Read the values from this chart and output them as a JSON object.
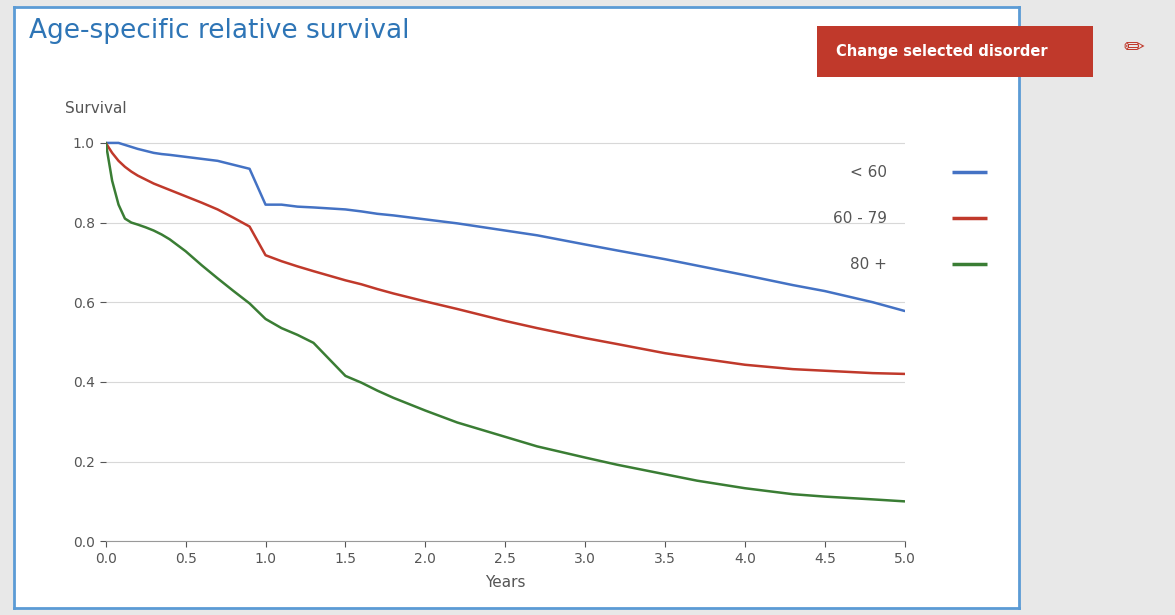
{
  "title": "Age-specific relative survival",
  "ylabel": "Survival",
  "xlabel": "Years",
  "bg_outer": "#e8e8e8",
  "panel_bg": "#ffffff",
  "border_color": "#5b9bd5",
  "title_color": "#2e75b6",
  "ylabel_color": "#555555",
  "xlabel_color": "#555555",
  "tick_color": "#555555",
  "grid_color": "#d8d8d8",
  "xlim": [
    0.0,
    5.0
  ],
  "ylim": [
    0.0,
    1.05
  ],
  "xticks": [
    0.0,
    0.5,
    1.0,
    1.5,
    2.0,
    2.5,
    3.0,
    3.5,
    4.0,
    4.5,
    5.0
  ],
  "yticks": [
    0.0,
    0.2,
    0.4,
    0.6,
    0.8,
    1.0
  ],
  "legend_labels": [
    "< 60",
    "60 - 79",
    "80 +"
  ],
  "legend_colors": [
    "#4472c4",
    "#c0392b",
    "#3a7d34"
  ],
  "button_bg": "#c0392b",
  "button_text": "Change selected disorder",
  "button_text_color": "#ffffff",
  "pencil_circle_color": "#e8e8e8",
  "pencil_color": "#c0392b",
  "line_under60": {
    "x": [
      0.0,
      0.04,
      0.08,
      0.12,
      0.16,
      0.2,
      0.25,
      0.3,
      0.35,
      0.4,
      0.5,
      0.6,
      0.7,
      0.8,
      0.9,
      1.0,
      1.1,
      1.2,
      1.3,
      1.5,
      1.6,
      1.7,
      1.8,
      2.0,
      2.2,
      2.5,
      2.7,
      3.0,
      3.2,
      3.5,
      3.7,
      4.0,
      4.3,
      4.5,
      4.8,
      5.0
    ],
    "y": [
      1.0,
      1.0,
      1.0,
      0.995,
      0.99,
      0.985,
      0.98,
      0.975,
      0.972,
      0.97,
      0.965,
      0.96,
      0.955,
      0.945,
      0.935,
      0.845,
      0.845,
      0.84,
      0.838,
      0.833,
      0.828,
      0.822,
      0.818,
      0.808,
      0.798,
      0.78,
      0.768,
      0.745,
      0.73,
      0.708,
      0.692,
      0.668,
      0.643,
      0.628,
      0.6,
      0.578
    ],
    "color": "#4472c4",
    "linewidth": 1.8
  },
  "line_60_79": {
    "x": [
      0.0,
      0.04,
      0.08,
      0.12,
      0.16,
      0.2,
      0.25,
      0.3,
      0.35,
      0.4,
      0.5,
      0.6,
      0.7,
      0.8,
      0.9,
      1.0,
      1.1,
      1.2,
      1.3,
      1.5,
      1.6,
      1.7,
      1.8,
      2.0,
      2.2,
      2.5,
      2.7,
      3.0,
      3.2,
      3.5,
      3.7,
      4.0,
      4.3,
      4.5,
      4.8,
      5.0
    ],
    "y": [
      1.0,
      0.975,
      0.955,
      0.94,
      0.928,
      0.918,
      0.908,
      0.898,
      0.89,
      0.882,
      0.866,
      0.85,
      0.833,
      0.812,
      0.79,
      0.718,
      0.703,
      0.69,
      0.678,
      0.655,
      0.645,
      0.633,
      0.622,
      0.602,
      0.583,
      0.553,
      0.535,
      0.51,
      0.495,
      0.472,
      0.46,
      0.443,
      0.432,
      0.428,
      0.422,
      0.42
    ],
    "color": "#c0392b",
    "linewidth": 1.8
  },
  "line_80plus": {
    "x": [
      0.0,
      0.04,
      0.08,
      0.12,
      0.16,
      0.2,
      0.25,
      0.3,
      0.35,
      0.4,
      0.5,
      0.6,
      0.7,
      0.8,
      0.9,
      1.0,
      1.1,
      1.2,
      1.3,
      1.5,
      1.6,
      1.7,
      1.8,
      2.0,
      2.2,
      2.5,
      2.7,
      3.0,
      3.2,
      3.5,
      3.7,
      4.0,
      4.3,
      4.5,
      4.8,
      5.0
    ],
    "y": [
      1.0,
      0.905,
      0.845,
      0.81,
      0.8,
      0.795,
      0.788,
      0.78,
      0.77,
      0.758,
      0.728,
      0.693,
      0.66,
      0.628,
      0.597,
      0.558,
      0.535,
      0.518,
      0.498,
      0.415,
      0.398,
      0.378,
      0.36,
      0.328,
      0.298,
      0.262,
      0.238,
      0.21,
      0.192,
      0.168,
      0.152,
      0.133,
      0.118,
      0.112,
      0.105,
      0.1
    ],
    "color": "#3a7d34",
    "linewidth": 1.8
  }
}
